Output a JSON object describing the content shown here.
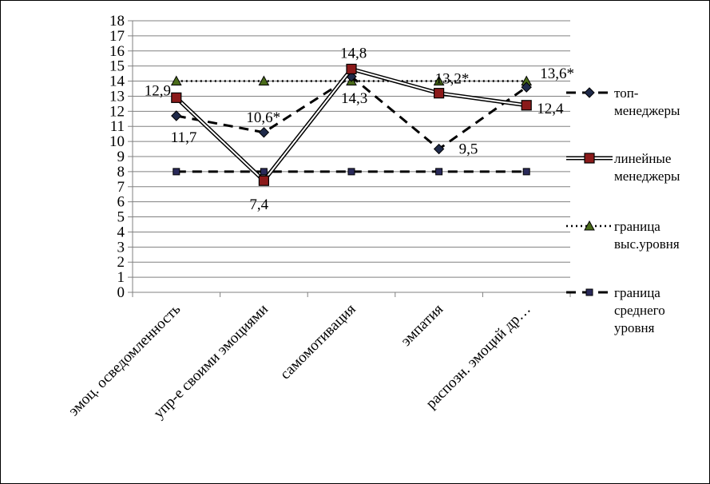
{
  "chart_data": {
    "type": "line",
    "categories": [
      "эмоц. осведомленность",
      "упр-е своими эмоциями",
      "самомотивация",
      "эмпатия",
      "распозн. эмоций др…"
    ],
    "ylim": [
      0,
      18
    ],
    "yticks": [
      0,
      1,
      2,
      3,
      4,
      5,
      6,
      7,
      8,
      9,
      10,
      11,
      12,
      13,
      14,
      15,
      16,
      17,
      18
    ],
    "grid": true,
    "legend_position": "right",
    "series": [
      {
        "name": "топ-менеджеры",
        "legend_lines": [
          "топ-",
          "менеджеры"
        ],
        "values": [
          11.7,
          10.6,
          14.3,
          9.5,
          13.6
        ],
        "labels": [
          "11,7",
          "10,6*",
          "14,3",
          "9,5",
          "13,6*"
        ],
        "line_style": "dashed",
        "marker": "diamond",
        "color": "#000000",
        "marker_color": "#1f2a4a"
      },
      {
        "name": "линейные менеджеры",
        "legend_lines": [
          "линейные",
          "менеджеры"
        ],
        "values": [
          12.9,
          7.4,
          14.8,
          13.2,
          12.4
        ],
        "labels": [
          "12,9",
          "7,4",
          "14,8",
          "13,2*",
          "12,4"
        ],
        "line_style": "double",
        "marker": "square",
        "color": "#000000",
        "marker_color": "#8b1a1a"
      },
      {
        "name": "граница выс.уровня",
        "legend_lines": [
          "граница",
          "выс.уровня"
        ],
        "values": [
          14,
          14,
          14,
          14,
          14
        ],
        "labels": [],
        "line_style": "dotted",
        "marker": "triangle",
        "color": "#000000",
        "marker_color": "#4a6b1a"
      },
      {
        "name": "граница среднего уровня",
        "legend_lines": [
          "граница",
          "среднего",
          "уровня"
        ],
        "values": [
          8,
          8,
          8,
          8,
          8
        ],
        "labels": [],
        "line_style": "dashed",
        "marker": "square-small",
        "color": "#000000",
        "marker_color": "#2a2a5a"
      }
    ]
  }
}
